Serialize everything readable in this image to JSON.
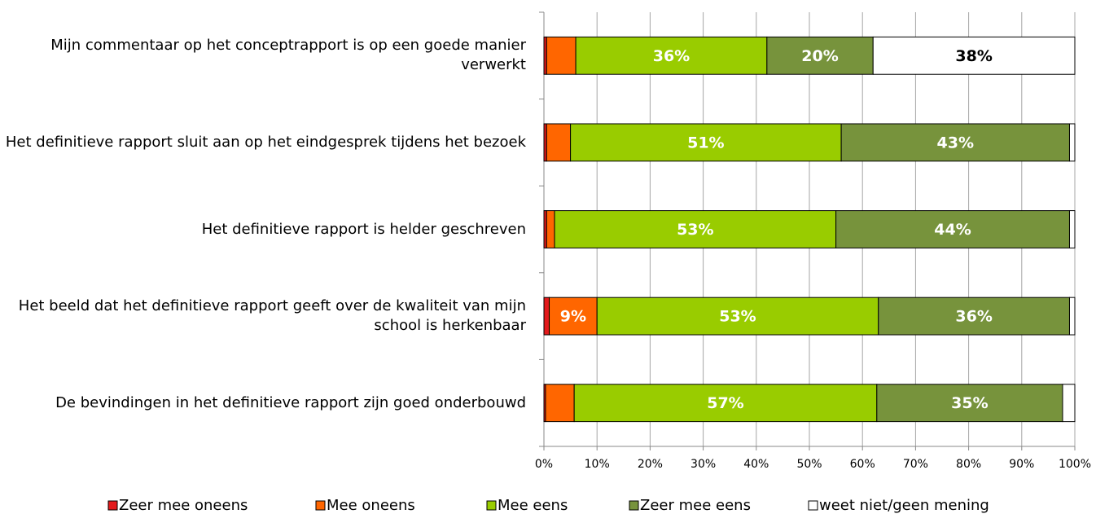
{
  "chart_data": {
    "type": "stacked-bar-horizontal",
    "categories": [
      "Mijn commentaar op het conceptrapport is op een goede manier verwerkt",
      "Het definitieve rapport sluit aan op het eindgesprek tijdens het bezoek",
      "Het definitieve rapport is helder geschreven",
      "Het beeld dat het definitieve rapport geeft over de kwaliteit van mijn school is herkenbaar",
      "De bevindingen in het definitieve rapport zijn goed onderbouwd"
    ],
    "series": [
      {
        "name": "Zeer mee oneens",
        "color": "#e31a1c",
        "values": [
          0.5,
          0.5,
          0.5,
          1,
          0.3
        ],
        "value_labels": [
          null,
          null,
          null,
          null,
          null
        ]
      },
      {
        "name": "Mee oneens",
        "color": "#ff6600",
        "values": [
          5.5,
          4.5,
          1.5,
          9,
          5.4
        ],
        "value_labels": [
          null,
          null,
          null,
          "9%",
          null
        ]
      },
      {
        "name": "Mee eens",
        "color": "#99cc00",
        "values": [
          36,
          51,
          53,
          53,
          57
        ],
        "value_labels": [
          "36%",
          "51%",
          "53%",
          "53%",
          "57%"
        ]
      },
      {
        "name": "Zeer mee eens",
        "color": "#77933c",
        "values": [
          20,
          43,
          44,
          36,
          35
        ],
        "value_labels": [
          "20%",
          "43%",
          "44%",
          "36%",
          "35%"
        ]
      },
      {
        "name": "weet niet/geen mening",
        "color": "#ffffff",
        "values": [
          38,
          1,
          1,
          1,
          2.3
        ],
        "value_labels": [
          "38%",
          null,
          null,
          null,
          null
        ]
      }
    ],
    "xlim": [
      0,
      100
    ],
    "xticks": [
      {
        "value": 0,
        "label": "0%"
      },
      {
        "value": 10,
        "label": "10%"
      },
      {
        "value": 20,
        "label": "20%"
      },
      {
        "value": 30,
        "label": "30%"
      },
      {
        "value": 40,
        "label": "40%"
      },
      {
        "value": 50,
        "label": "50%"
      },
      {
        "value": 60,
        "label": "60%"
      },
      {
        "value": 70,
        "label": "70%"
      },
      {
        "value": 80,
        "label": "80%"
      },
      {
        "value": 90,
        "label": "90%"
      },
      {
        "value": 100,
        "label": "100%"
      }
    ],
    "grid": true,
    "legend": "bottom"
  }
}
